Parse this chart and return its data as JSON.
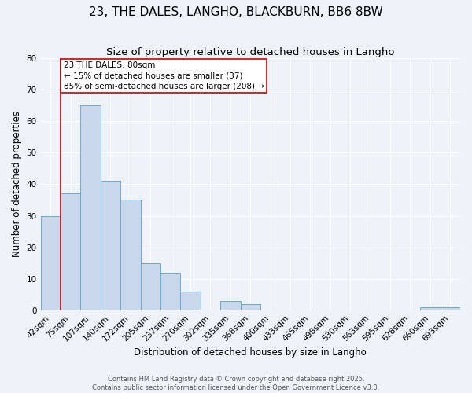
{
  "title": "23, THE DALES, LANGHO, BLACKBURN, BB6 8BW",
  "subtitle": "Size of property relative to detached houses in Langho",
  "xlabel": "Distribution of detached houses by size in Langho",
  "ylabel": "Number of detached properties",
  "categories": [
    "42sqm",
    "75sqm",
    "107sqm",
    "140sqm",
    "172sqm",
    "205sqm",
    "237sqm",
    "270sqm",
    "302sqm",
    "335sqm",
    "368sqm",
    "400sqm",
    "433sqm",
    "465sqm",
    "498sqm",
    "530sqm",
    "563sqm",
    "595sqm",
    "628sqm",
    "660sqm",
    "693sqm"
  ],
  "values": [
    30,
    37,
    65,
    41,
    35,
    15,
    12,
    6,
    0,
    3,
    2,
    0,
    0,
    0,
    0,
    0,
    0,
    0,
    0,
    1,
    1
  ],
  "bar_color": "#c8d8ea",
  "bar_edge_color": "#6aaad4",
  "vline_index": 1,
  "vline_color": "#cc0000",
  "annotation_text": "23 THE DALES: 80sqm\n← 15% of detached houses are smaller (37)\n85% of semi-detached houses are larger (208) →",
  "annotation_box_color": "#ffffff",
  "annotation_box_edge": "#cc0000",
  "ylim": [
    0,
    80
  ],
  "yticks": [
    0,
    10,
    20,
    30,
    40,
    50,
    60,
    70,
    80
  ],
  "background_color": "#eef3f9",
  "grid_color": "#ffffff",
  "footer_line1": "Contains HM Land Registry data © Crown copyright and database right 2025.",
  "footer_line2": "Contains public sector information licensed under the Open Government Licence v3.0.",
  "title_fontsize": 11,
  "subtitle_fontsize": 9.5,
  "axis_label_fontsize": 8.5,
  "tick_fontsize": 7.5,
  "footer_fontsize": 6,
  "annotation_fontsize": 7.5
}
